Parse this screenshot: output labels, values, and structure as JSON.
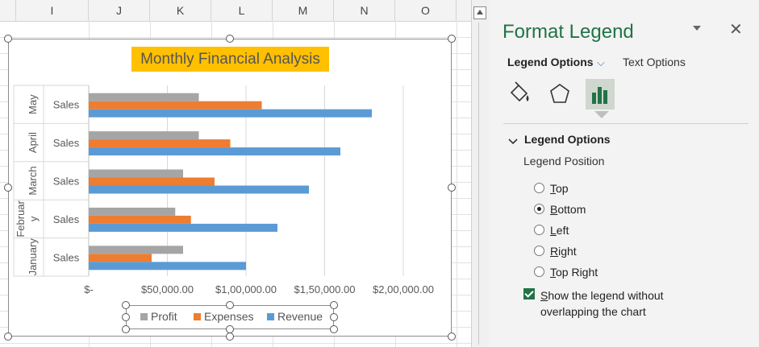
{
  "sheet": {
    "columns": [
      "I",
      "J",
      "K",
      "L",
      "M",
      "N",
      "O"
    ]
  },
  "chart": {
    "title": "Monthly Financial Analysis",
    "colors": {
      "profit": "#a5a5a5",
      "expenses": "#ed7d31",
      "revenue": "#5b9bd5"
    },
    "chart_data": {
      "type": "bar",
      "orientation": "horizontal",
      "title": "Monthly Financial Analysis",
      "categories": [
        {
          "month": "January",
          "item": "Sales"
        },
        {
          "month": "Februar\ny",
          "item": "Sales"
        },
        {
          "month": "March",
          "item": "Sales"
        },
        {
          "month": "April",
          "item": "Sales"
        },
        {
          "month": "May",
          "item": "Sales"
        }
      ],
      "series": [
        {
          "name": "Revenue",
          "values": [
            100000,
            120000,
            140000,
            160000,
            180000
          ]
        },
        {
          "name": "Expenses",
          "values": [
            40000,
            65000,
            80000,
            90000,
            110000
          ]
        },
        {
          "name": "Profit",
          "values": [
            60000,
            55000,
            60000,
            70000,
            70000
          ]
        }
      ],
      "xlim": [
        0,
        200000
      ],
      "x_ticks": [
        "$-",
        "$50,000.00",
        "$1,00,000.00",
        "$1,50,000.00",
        "$2,00,000.00"
      ],
      "grid": true,
      "legend_position": "bottom"
    }
  },
  "panel": {
    "title": "Format Legend",
    "close_glyph": "✕",
    "tabs": {
      "legend_options": "Legend Options",
      "text_options": "Text Options",
      "chevron": "⌵"
    },
    "icons": [
      "fill-line-icon",
      "effects-icon",
      "legend-options-icon"
    ],
    "section_title": "Legend Options",
    "position_label": "Legend Position",
    "positions": [
      {
        "label": "Top",
        "accel": "T",
        "rest": "op",
        "selected": false
      },
      {
        "label": "Bottom",
        "accel": "B",
        "rest": "ottom",
        "selected": true
      },
      {
        "label": "Left",
        "accel": "L",
        "rest": "eft",
        "selected": false
      },
      {
        "label": "Right",
        "accel": "R",
        "rest": "ight",
        "selected": false
      },
      {
        "label": "Top Right",
        "accel": "T",
        "rest": "op Right",
        "selected": false
      }
    ],
    "overlap_checkbox": {
      "accel": "S",
      "rest": "how the legend without overlapping the chart",
      "checked": true
    }
  }
}
